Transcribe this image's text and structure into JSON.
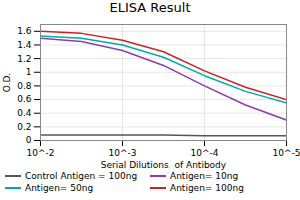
{
  "chart_data": {
    "type": "line",
    "title": "ELISA Result",
    "xlabel": "Serial Dilutions  of Antibody",
    "ylabel": "O.D.",
    "x": [
      0.01,
      0.0031622776601683794,
      0.001,
      0.00031622776601683794,
      0.0001,
      3.1622776601683795e-05,
      1e-05
    ],
    "series": [
      {
        "name": "Control Antigen = 100ng",
        "color": "#555555",
        "values": [
          0.08,
          0.08,
          0.08,
          0.08,
          0.07,
          0.07,
          0.07
        ]
      },
      {
        "name": "Antigen= 10ng",
        "color": "#8B3DAF",
        "values": [
          1.5,
          1.45,
          1.32,
          1.1,
          0.8,
          0.52,
          0.3
        ]
      },
      {
        "name": "Antigen= 50ng",
        "color": "#00AAAA",
        "values": [
          1.53,
          1.5,
          1.4,
          1.22,
          0.95,
          0.72,
          0.55
        ]
      },
      {
        "name": "Antigen= 100ng",
        "color": "#CC2222",
        "values": [
          1.6,
          1.57,
          1.47,
          1.3,
          1.02,
          0.78,
          0.6
        ]
      }
    ],
    "log": "x",
    "xlim": [
      0.01,
      1e-05
    ],
    "xticks": [
      {
        "value": 0.01,
        "label": "10^-2"
      },
      {
        "value": 0.001,
        "label": "10^-3"
      },
      {
        "value": 0.0001,
        "label": "10^-4"
      },
      {
        "value": 1e-05,
        "label": "10^-5"
      }
    ],
    "ylim": [
      0,
      1.7
    ],
    "yticks": [
      0,
      0.2,
      0.4,
      0.6,
      0.8,
      1,
      1.2,
      1.4,
      1.6
    ],
    "grid": true,
    "legend": "bottom"
  }
}
